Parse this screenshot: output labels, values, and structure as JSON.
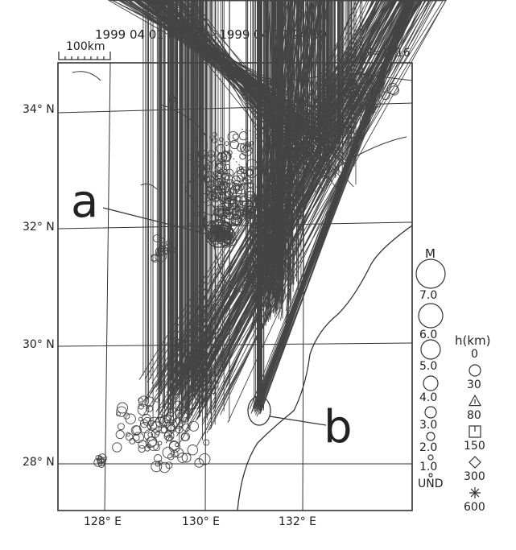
{
  "header": {
    "period": "1999 04 01 00:00 -- 1999 04 30 24:00",
    "count": "N=1416",
    "scale": "100km"
  },
  "map": {
    "lat_labels": [
      "34° N",
      "32° N",
      "30° N",
      "28° N"
    ],
    "lon_labels": [
      "128° E",
      "130° E",
      "132° E"
    ],
    "annotations": [
      "a",
      "b"
    ]
  },
  "legend": {
    "magnitude_title": "M",
    "magnitudes": [
      "7.0",
      "6.0",
      "5.0",
      "4.0",
      "3.0",
      "2.0",
      "1.0",
      "UND"
    ],
    "depth_title": "h(km)",
    "depths": [
      "0",
      "30",
      "80",
      "150",
      "300",
      "600"
    ],
    "depth_symbols": [
      "circle",
      "triangle",
      "square",
      "diamond",
      "asterisk"
    ]
  }
}
